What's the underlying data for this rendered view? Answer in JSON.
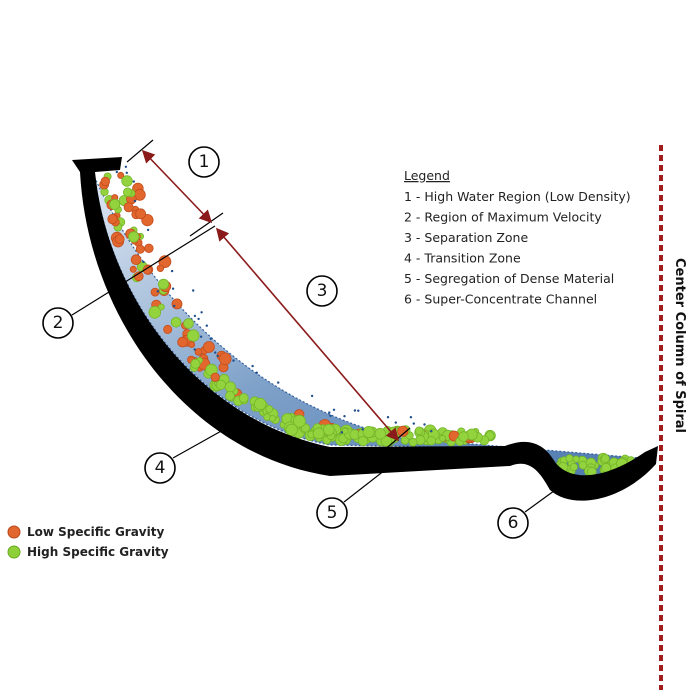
{
  "callouts": [
    "1",
    "2",
    "3",
    "4",
    "5",
    "6"
  ],
  "legend": {
    "title": "Legend",
    "items": [
      "1 - High Water Region (Low Density)",
      "2 - Region of Maximum Velocity",
      "3 - Separation Zone",
      "4 - Transition Zone",
      "5 - Segregation of Dense Material",
      "6 - Super-Concentrate Channel"
    ]
  },
  "key": {
    "low": "Low Specific Gravity",
    "high": "High Specific Gravity"
  },
  "center_label": "Center Column of Spiral"
}
